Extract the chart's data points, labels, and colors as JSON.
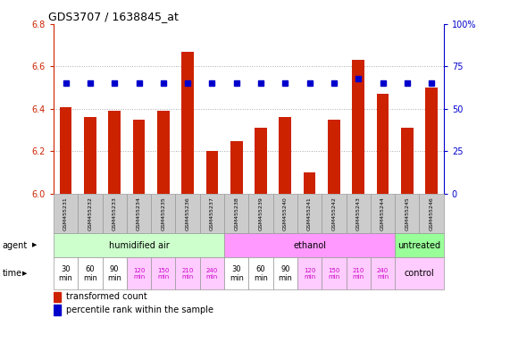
{
  "title": "GDS3707 / 1638845_at",
  "samples": [
    "GSM455231",
    "GSM455232",
    "GSM455233",
    "GSM455234",
    "GSM455235",
    "GSM455236",
    "GSM455237",
    "GSM455238",
    "GSM455239",
    "GSM455240",
    "GSM455241",
    "GSM455242",
    "GSM455243",
    "GSM455244",
    "GSM455245",
    "GSM455246"
  ],
  "red_values": [
    6.41,
    6.36,
    6.39,
    6.35,
    6.39,
    6.67,
    6.2,
    6.25,
    6.31,
    6.36,
    6.1,
    6.35,
    6.63,
    6.47,
    6.31,
    6.5
  ],
  "blue_values": [
    65,
    65,
    65,
    65,
    65,
    65,
    65,
    65,
    65,
    65,
    65,
    65,
    68,
    65,
    65,
    65
  ],
  "ylim_left": [
    6.0,
    6.8
  ],
  "ylim_right": [
    0,
    100
  ],
  "yticks_left": [
    6.0,
    6.2,
    6.4,
    6.6,
    6.8
  ],
  "yticks_right": [
    0,
    25,
    50,
    75,
    100
  ],
  "ytick_labels_right": [
    "0",
    "25",
    "50",
    "75",
    "100%"
  ],
  "bar_color": "#cc2200",
  "dot_color": "#0000cc",
  "agent_groups": [
    {
      "label": "humidified air",
      "start": 0,
      "end": 6,
      "color": "#ccffcc"
    },
    {
      "label": "ethanol",
      "start": 7,
      "end": 13,
      "color": "#ff99ff"
    },
    {
      "label": "untreated",
      "start": 14,
      "end": 15,
      "color": "#99ff99"
    }
  ],
  "time_color_pink": "#ffccff",
  "time_color_white": "#ffffff",
  "control_label": "control",
  "control_color": "#ffccff",
  "agent_label": "agent",
  "time_label": "time",
  "legend_red": "transformed count",
  "legend_blue": "percentile rank within the sample",
  "grid_color": "#aaaaaa",
  "axis_left_color": "#cc2200",
  "axis_right_color": "#0000cc",
  "bar_width": 0.5,
  "sample_bg": "#cccccc",
  "sample_edge": "#999999"
}
